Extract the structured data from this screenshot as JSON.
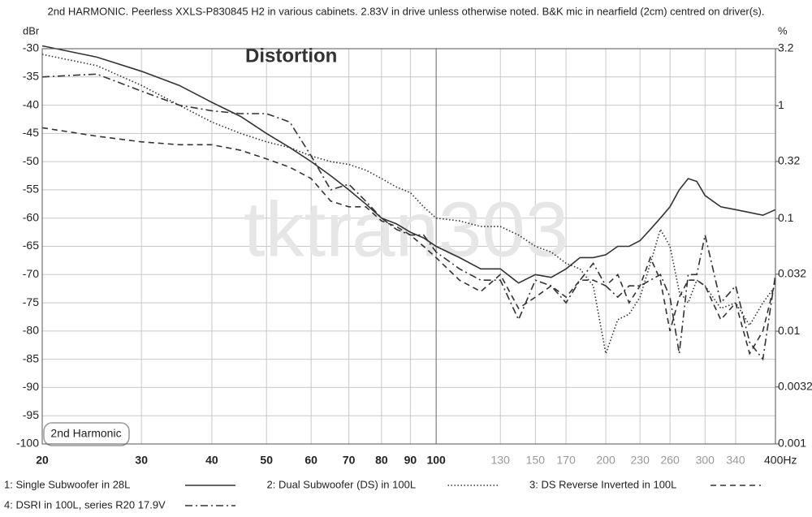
{
  "chart_data": {
    "type": "line",
    "title": "2nd HARMONIC. Peerless XXLS-P830845 H2 in various cabinets. 2.83V in drive unless otherwise noted. B&K mic in nearfield (2cm) centred on driver(s).",
    "annotations": {
      "heading": "Distortion",
      "badge": "2nd Harmonic",
      "watermark": "tktran303"
    },
    "y_label": "dBr",
    "y2_label": "%",
    "x_log": true,
    "y2_log": true,
    "grid": true,
    "xlim": [
      20,
      400
    ],
    "xticks": [
      20,
      30,
      40,
      50,
      60,
      70,
      80,
      90,
      100,
      130,
      150,
      170,
      200,
      230,
      260,
      300,
      340,
      {
        "value": 400,
        "label": "400Hz"
      }
    ],
    "ylim": [
      -100,
      -30
    ],
    "yticks": [
      -30,
      -35,
      -40,
      -45,
      -50,
      -55,
      -60,
      -65,
      -70,
      -75,
      -80,
      -85,
      -90,
      -95,
      -100
    ],
    "y2lim": [
      0.001,
      3.2
    ],
    "y2ticks": [
      3.2,
      1,
      0.32,
      0.1,
      0.032,
      0.01,
      0.0032,
      0.001
    ],
    "x": [
      20,
      25,
      30,
      35,
      40,
      45,
      50,
      55,
      60,
      65,
      70,
      75,
      80,
      85,
      90,
      95,
      100,
      110,
      120,
      130,
      140,
      150,
      160,
      170,
      180,
      190,
      200,
      210,
      220,
      230,
      240,
      250,
      260,
      270,
      280,
      290,
      300,
      320,
      340,
      360,
      380,
      400
    ],
    "series": [
      {
        "name": "1: Single Subwoofer in 28L",
        "color": "#333333",
        "style": "solid",
        "values": [
          -29.5,
          -31.5,
          -34,
          -36.5,
          -39.5,
          -42,
          -45,
          -47.5,
          -50,
          -52.5,
          -55,
          -57.5,
          -60,
          -61,
          -62.5,
          -63.5,
          -65,
          -67,
          -69,
          -69,
          -71.5,
          -70,
          -70.5,
          -69,
          -67,
          -67,
          -66.5,
          -65,
          -65,
          -64,
          -62,
          -60,
          -58,
          -55,
          -53,
          -53.5,
          -56,
          -58,
          -58.5,
          -59,
          -59.5,
          -58.5
        ]
      },
      {
        "name": "2: Dual Subwoofer (DS) in 100L",
        "color": "#333333",
        "style": "dotted",
        "values": [
          -31,
          -33,
          -36.5,
          -40,
          -43,
          -45,
          -46.5,
          -47.5,
          -49,
          -50,
          -50.5,
          -51.5,
          -53,
          -54.5,
          -55.5,
          -58,
          -60,
          -60.5,
          -61.5,
          -61.5,
          -63,
          -65,
          -66,
          -68,
          -69,
          -72,
          -84,
          -78,
          -77,
          -74,
          -68,
          -62,
          -65,
          -73,
          -75,
          -71,
          -72,
          -76,
          -75,
          -79,
          -75,
          -72
        ]
      },
      {
        "name": "3: DS Reverse Inverted in 100L",
        "color": "#333333",
        "style": "dashed",
        "values": [
          -44,
          -45.5,
          -46.5,
          -47,
          -47,
          -48,
          -49.5,
          -51,
          -53,
          -57,
          -58,
          -58,
          -60.5,
          -61.5,
          -63,
          -65,
          -67,
          -71,
          -73,
          -70,
          -76,
          -74,
          -72,
          -74,
          -71,
          -71,
          -72,
          -70,
          -75,
          -72,
          -67,
          -71,
          -80,
          -74,
          -71,
          -71,
          -72,
          -78,
          -75,
          -84,
          -80,
          -71
        ]
      },
      {
        "name": "4: DSRI in 100L, series R20 17.9V",
        "color": "#333333",
        "style": "dashdot",
        "values": [
          -35,
          -34.5,
          -37.5,
          -40,
          -41,
          -41.5,
          -41.5,
          -43,
          -49,
          -55,
          -54,
          -57,
          -60,
          -62,
          -63,
          -63,
          -66,
          -69,
          -71,
          -71,
          -78,
          -71,
          -72,
          -75,
          -71,
          -68,
          -72,
          -74,
          -72,
          -72,
          -71,
          -70,
          -74,
          -84,
          -70,
          -70,
          -63,
          -75,
          -72,
          -82,
          -85,
          -70
        ]
      }
    ]
  }
}
